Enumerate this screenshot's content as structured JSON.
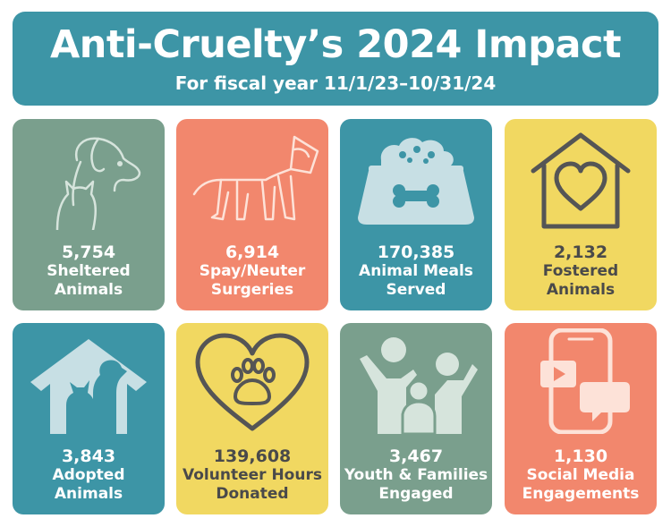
{
  "header": {
    "title": "Anti-Cruelty’s 2024 Impact",
    "subtitle": "For fiscal year 11/1/23–10/31/24"
  },
  "colors": {
    "teal": "#3d95a6",
    "sage": "#7a9f8d",
    "salmon": "#f2876d",
    "yellow": "#f1d861"
  },
  "stats": [
    {
      "value": "5,754",
      "label": "Sheltered\nAnimals",
      "icon": "dog-cat-outline-icon"
    },
    {
      "value": "6,914",
      "label": "Spay/Neuter\nSurgeries",
      "icon": "dog-cone-icon"
    },
    {
      "value": "170,385",
      "label": "Animal Meals\nServed",
      "icon": "food-bowl-icon"
    },
    {
      "value": "2,132",
      "label": "Fostered\nAnimals",
      "icon": "house-heart-icon"
    },
    {
      "value": "3,843",
      "label": "Adopted\nAnimals",
      "icon": "house-dog-cat-icon"
    },
    {
      "value": "139,608",
      "label": "Volunteer Hours\nDonated",
      "icon": "heart-paw-icon"
    },
    {
      "value": "3,467",
      "label": "Youth & Families\nEngaged",
      "icon": "family-icon"
    },
    {
      "value": "1,130",
      "label": "Social Media\nEngagements",
      "icon": "phone-media-icon"
    }
  ]
}
